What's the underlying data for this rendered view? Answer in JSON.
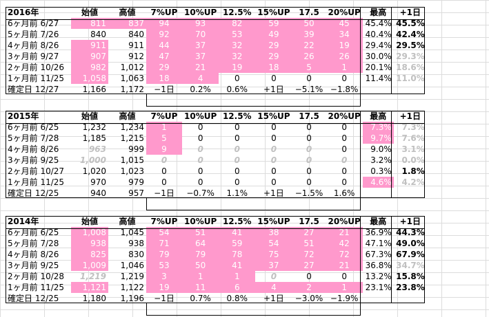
{
  "tables": [
    {
      "header": [
        "2016年",
        "始値",
        "高値",
        "7%UP",
        "10%UP",
        "12.5%",
        "15%UP",
        "17.5",
        "20%UP",
        "最高",
        "+1日"
      ],
      "rows": [
        {
          "c": [
            "6ヶ月前  6/27",
            "811",
            "837",
            "94",
            "93",
            "82",
            "59",
            "50",
            "45",
            "45.4%",
            "45.5%"
          ]
        },
        {
          "c": [
            "5ヶ月前  7/26",
            "840",
            "840",
            "92",
            "70",
            "53",
            "49",
            "39",
            "34",
            "40.4%",
            "42.4%"
          ]
        },
        {
          "c": [
            "4ヶ月前  8/26",
            "911",
            "911",
            "44",
            "37",
            "32",
            "29",
            "22",
            "19",
            "29.4%",
            "29.5%"
          ]
        },
        {
          "c": [
            "3ヶ月前  9/27",
            "907",
            "912",
            "47",
            "37",
            "32",
            "29",
            "26",
            "26",
            "30.0%",
            "29.3%"
          ]
        },
        {
          "c": [
            "2ヶ月前  10/26",
            "982",
            "1,012",
            "29",
            "21",
            "19",
            "18",
            "5",
            "1",
            "20.1%",
            "18.6%"
          ]
        },
        {
          "c": [
            "1ヶ月前  11/25",
            "1,058",
            "1,063",
            "18",
            "4",
            "0",
            "0",
            "0",
            "0",
            "11.4%",
            "11.0%"
          ]
        }
      ],
      "footer": [
        "確定日  12/27",
        "1,166",
        "1,172",
        "−1日",
        "0.2%",
        "0.6%",
        "+1日",
        "−5.1%",
        "−1.8%",
        "",
        ""
      ]
    },
    {
      "header": [
        "2015年",
        "始値",
        "高値",
        "7%UP",
        "10%UP",
        "12.5%",
        "15%UP",
        "17.5",
        "20%UP",
        "最高",
        "+1日"
      ],
      "rows": [
        {
          "c": [
            "6ヶ月前  6/25",
            "1,232",
            "1,234",
            "1",
            "0",
            "0",
            "0",
            "0",
            "0",
            "7.3%",
            "7.3%"
          ]
        },
        {
          "c": [
            "5ヶ月前  7/28",
            "1,185",
            "1,215",
            "5",
            "0",
            "0",
            "0",
            "0",
            "0",
            "9.7%",
            "7.6%"
          ]
        },
        {
          "c": [
            "4ヶ月前  8/26",
            "963",
            "999",
            "9",
            "0",
            "0",
            "0",
            "0",
            "0",
            "9.0%",
            "3.1%"
          ]
        },
        {
          "c": [
            "3ヶ月前  9/25",
            "1,000",
            "1,015",
            "0",
            "0",
            "0",
            "0",
            "0",
            "0",
            "3.2%",
            "0.0%"
          ]
        },
        {
          "c": [
            "2ヶ月前  10/27",
            "1,020",
            "1,023",
            "0",
            "0",
            "0",
            "0",
            "0",
            "0",
            "0.3%",
            "1.8%"
          ]
        },
        {
          "c": [
            "1ヶ月前  11/25",
            "970",
            "979",
            "0",
            "0",
            "0",
            "0",
            "0",
            "0",
            "4.6%",
            "4.2%"
          ]
        }
      ],
      "footer": [
        "確定日  12/25",
        "940",
        "957",
        "−1日",
        "−0.7%",
        "1.1%",
        "+1日",
        "−1.5%",
        "1.6%",
        "",
        ""
      ]
    },
    {
      "header": [
        "2014年",
        "始値",
        "高値",
        "7%UP",
        "10%UP",
        "12.5%",
        "15%UP",
        "17.5",
        "20%UP",
        "最高",
        "+1日"
      ],
      "rows": [
        {
          "c": [
            "6ヶ月前  6/25",
            "1,008",
            "1,045",
            "54",
            "51",
            "41",
            "38",
            "27",
            "21",
            "36.9%",
            "44.3%"
          ]
        },
        {
          "c": [
            "5ヶ月前  7/28",
            "938",
            "938",
            "71",
            "64",
            "59",
            "54",
            "51",
            "42",
            "47.1%",
            "49.0%"
          ]
        },
        {
          "c": [
            "4ヶ月前  8/26",
            "825",
            "830",
            "79",
            "79",
            "78",
            "75",
            "72",
            "72",
            "67.3%",
            "67.9%"
          ]
        },
        {
          "c": [
            "3ヶ月前  9/25",
            "1,009",
            "1,046",
            "53",
            "50",
            "41",
            "37",
            "27",
            "21",
            "36.8%",
            "34.7%"
          ]
        },
        {
          "c": [
            "2ヶ月前  10/28",
            "1,219",
            "1,219",
            "3",
            "1",
            "1",
            "0",
            "0",
            "0",
            "13.2%",
            "15.8%"
          ]
        },
        {
          "c": [
            "1ヶ月前  11/25",
            "1,121",
            "1,122",
            "19",
            "11",
            "6",
            "4",
            "2",
            "1",
            "23.1%",
            "23.8%"
          ]
        }
      ],
      "footer": [
        "確定日  12/25",
        "1,180",
        "1,196",
        "−1日",
        "0.7%",
        "0.8%",
        "+1日",
        "−3.0%",
        "−1.9%",
        "",
        ""
      ]
    }
  ],
  "colors": {
    "highlight": "#ff99cc",
    "muted": "#c0c0c0"
  }
}
